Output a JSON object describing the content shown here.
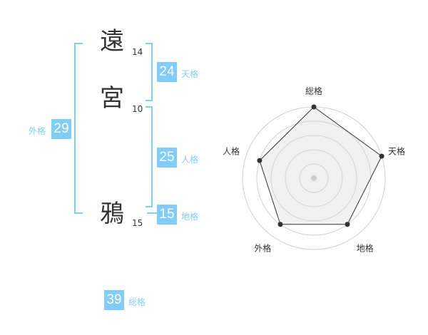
{
  "name": {
    "chars": [
      {
        "char": "遠",
        "strokes": "14"
      },
      {
        "char": "宮",
        "strokes": "10"
      },
      {
        "char": "鴉",
        "strokes": "15"
      }
    ]
  },
  "fortune": {
    "tenkaku": {
      "label": "天格",
      "value": "24"
    },
    "jinkaku": {
      "label": "人格",
      "value": "25"
    },
    "chikaku": {
      "label": "地格",
      "value": "15"
    },
    "gaikaku": {
      "label": "外格",
      "value": "29"
    },
    "soukaku": {
      "label": "総格",
      "value": "39"
    }
  },
  "colors": {
    "accent": "#7fcdf8",
    "text": "#333333",
    "fill": "#f0f0f0"
  },
  "chart_data": {
    "type": "radar",
    "categories": [
      "総格",
      "天格",
      "地格",
      "外格",
      "人格"
    ],
    "values": [
      5,
      5,
      4,
      4,
      4
    ],
    "range": [
      0,
      5
    ],
    "rings": 5
  }
}
